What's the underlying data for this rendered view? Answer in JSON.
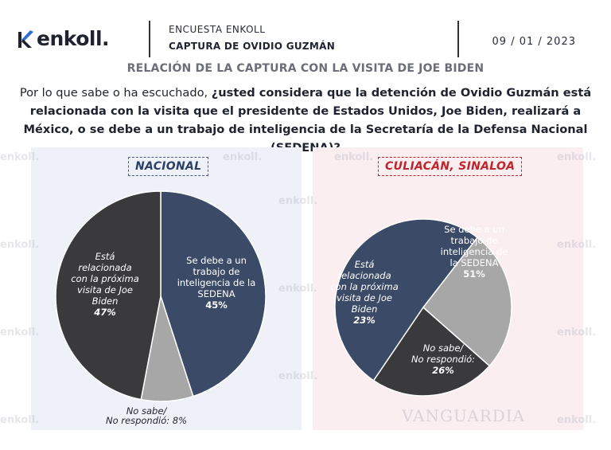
{
  "header": {
    "logo_text": "enkoll.",
    "survey": "ENCUESTA ENKOLL",
    "title": "CAPTURA DE OVIDIO GUZMÁN",
    "date": "09 / 01 / 2023"
  },
  "subtitle": "RELACIÓN DE LA CAPTURA CON LA VISITA DE JOE BIDEN",
  "question": {
    "intro": "Por lo que sabe o ha escuchado, ",
    "bold": "¿usted considera que la detención de Ovidio Guzmán está relacionada con la visita que el presidente de Estados Unidos, Joe Biden, realizará a México, o se debe a un trabajo de inteligencia de la Secretaría de la Defensa Nacional (SEDENA)?"
  },
  "watermark": "enkoll.",
  "photo_credit": "VANGUARDIA",
  "colors": {
    "sedena": "#3b4a66",
    "biden": "#3a3a3c",
    "nosabe": "#a7a7a7",
    "outline": "#ffffff"
  },
  "chart_data": [
    {
      "type": "pie",
      "title": "NACIONAL",
      "slices": [
        {
          "label": "Se debe a un trabajo de inteligencia de la SEDENA",
          "lines": [
            "Se debe a un",
            "trabajo de",
            "inteligencia de la",
            "SEDENA",
            "45%"
          ],
          "value": 45
        },
        {
          "label": "No sabe/ No respondió",
          "lines": [
            "No sabe/",
            "No respondió: 8%"
          ],
          "value": 8
        },
        {
          "label": "Está relacionada con la próxima visita de Joe Biden",
          "lines": [
            "Está",
            "relacionada",
            "con la próxima",
            "visita de Joe",
            "Biden",
            "47%"
          ],
          "value": 47
        }
      ]
    },
    {
      "type": "pie",
      "title": "CULIACÁN, SINALOA",
      "slices": [
        {
          "label": "Se debe a un trabajo de inteligencia de la SEDENA",
          "lines": [
            "Se debe a un",
            "trabajo de",
            "inteligencia de",
            "la SEDENA",
            "51%"
          ],
          "value": 51
        },
        {
          "label": "No sabe/ No respondió",
          "lines": [
            "No sabe/",
            "No respondió:",
            "26%"
          ],
          "value": 26
        },
        {
          "label": "Está relacionada con la próxima visita de Joe Biden",
          "lines": [
            "Está",
            "relacionada",
            "con la próxima",
            "visita de Joe",
            "Biden",
            "23%"
          ],
          "value": 23
        }
      ]
    }
  ]
}
